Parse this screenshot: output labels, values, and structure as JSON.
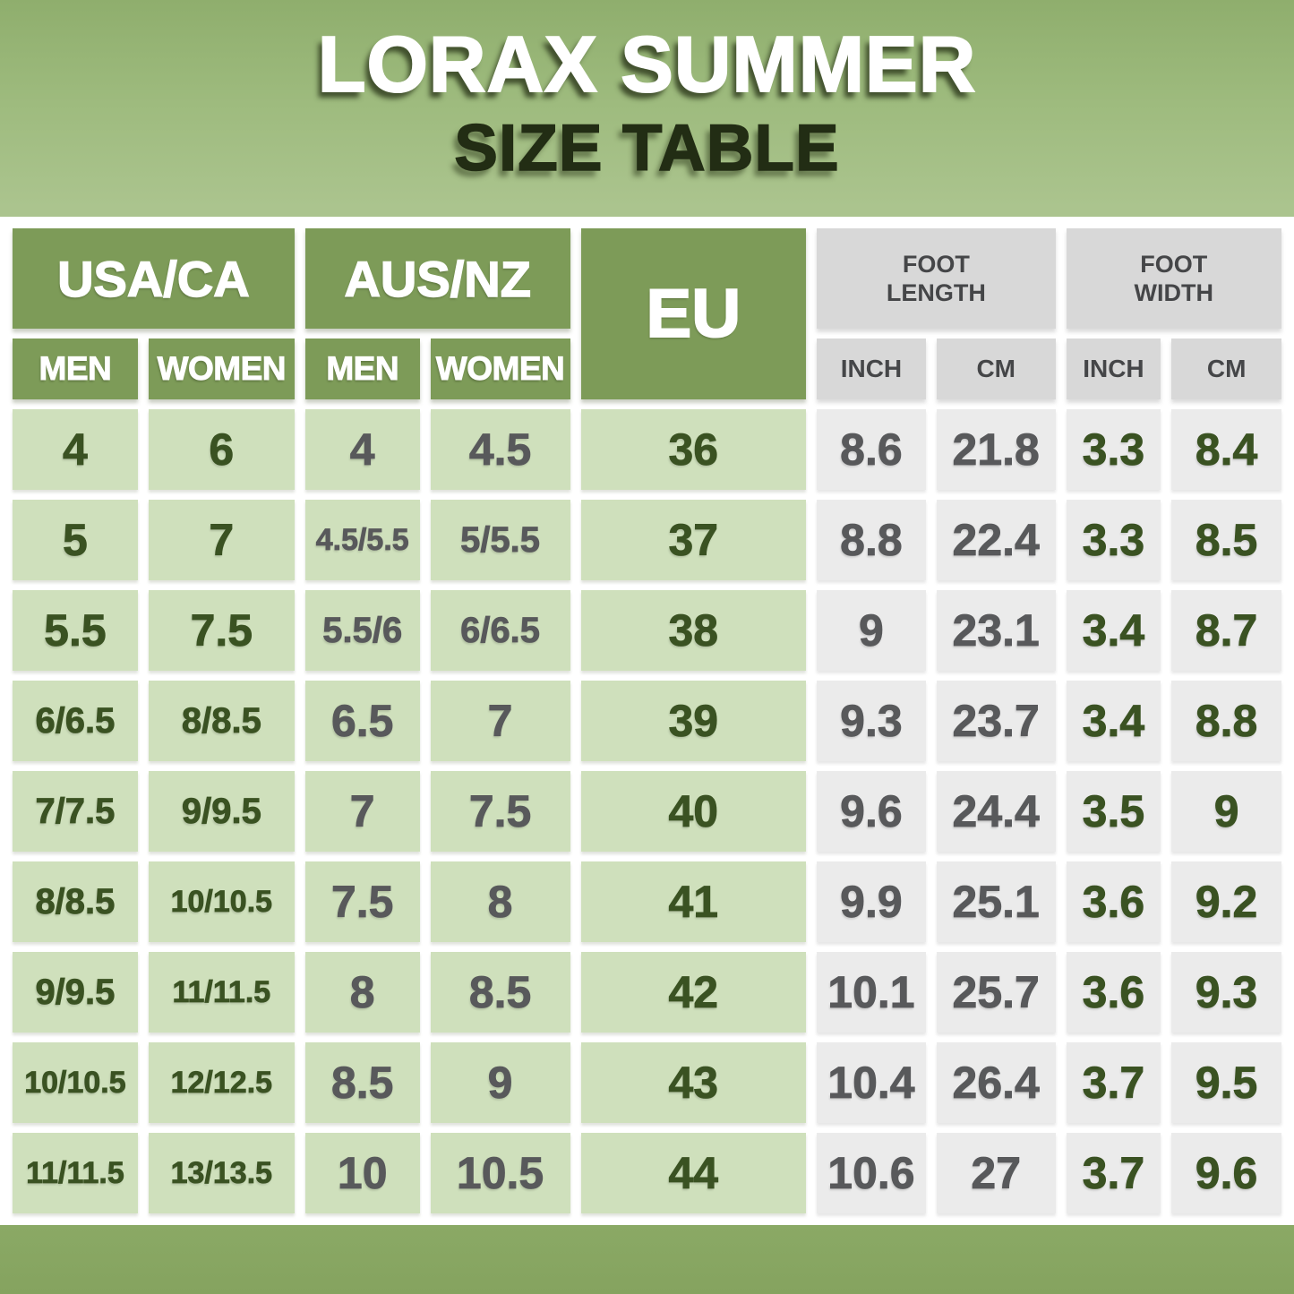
{
  "title": {
    "line1": "LORAX SUMMER",
    "line2": "SIZE TABLE"
  },
  "header": {
    "usa_ca": "USA/CA",
    "aus_nz": "AUS/NZ",
    "eu": "EU",
    "foot_length": "FOOT LENGTH",
    "foot_width": "FOOT WIDTH",
    "men": "MEN",
    "women": "WOMEN",
    "inch": "INCH",
    "cm": "CM"
  },
  "colors": {
    "header_green": "#7d9b58",
    "cell_green": "#cfe0bc",
    "header_gray": "#d8d8d8",
    "cell_gray": "#ebebeb",
    "text_dark_green": "#3a5222",
    "text_gray": "#58595b",
    "title_white": "#ffffff",
    "title_dark": "#222d14",
    "background_green_top": "#8fae6d",
    "background_green_light": "#b5cc99"
  },
  "chart_data": {
    "type": "table",
    "title": "LORAX SUMMER SIZE TABLE",
    "column_groups": [
      {
        "label": "USA/CA",
        "columns": [
          "MEN",
          "WOMEN"
        ]
      },
      {
        "label": "AUS/NZ",
        "columns": [
          "MEN",
          "WOMEN"
        ]
      },
      {
        "label": "EU",
        "columns": [
          "EU"
        ]
      },
      {
        "label": "FOOT LENGTH",
        "columns": [
          "INCH",
          "CM"
        ]
      },
      {
        "label": "FOOT WIDTH",
        "columns": [
          "INCH",
          "CM"
        ]
      }
    ],
    "columns": [
      "USA/CA MEN",
      "USA/CA WOMEN",
      "AUS/NZ MEN",
      "AUS/NZ WOMEN",
      "EU",
      "FOOT LENGTH INCH",
      "FOOT LENGTH CM",
      "FOOT WIDTH INCH",
      "FOOT WIDTH CM"
    ],
    "rows": [
      [
        "4",
        "6",
        "4",
        "4.5",
        "36",
        "8.6",
        "21.8",
        "3.3",
        "8.4"
      ],
      [
        "5",
        "7",
        "4.5/5.5",
        "5/5.5",
        "37",
        "8.8",
        "22.4",
        "3.3",
        "8.5"
      ],
      [
        "5.5",
        "7.5",
        "5.5/6",
        "6/6.5",
        "38",
        "9",
        "23.1",
        "3.4",
        "8.7"
      ],
      [
        "6/6.5",
        "8/8.5",
        "6.5",
        "7",
        "39",
        "9.3",
        "23.7",
        "3.4",
        "8.8"
      ],
      [
        "7/7.5",
        "9/9.5",
        "7",
        "7.5",
        "40",
        "9.6",
        "24.4",
        "3.5",
        "9"
      ],
      [
        "8/8.5",
        "10/10.5",
        "7.5",
        "8",
        "41",
        "9.9",
        "25.1",
        "3.6",
        "9.2"
      ],
      [
        "9/9.5",
        "11/11.5",
        "8",
        "8.5",
        "42",
        "10.1",
        "25.7",
        "3.6",
        "9.3"
      ],
      [
        "10/10.5",
        "12/12.5",
        "8.5",
        "9",
        "43",
        "10.4",
        "26.4",
        "3.7",
        "9.5"
      ],
      [
        "11/11.5",
        "13/13.5",
        "10",
        "10.5",
        "44",
        "10.6",
        "27",
        "3.7",
        "9.6"
      ]
    ]
  }
}
